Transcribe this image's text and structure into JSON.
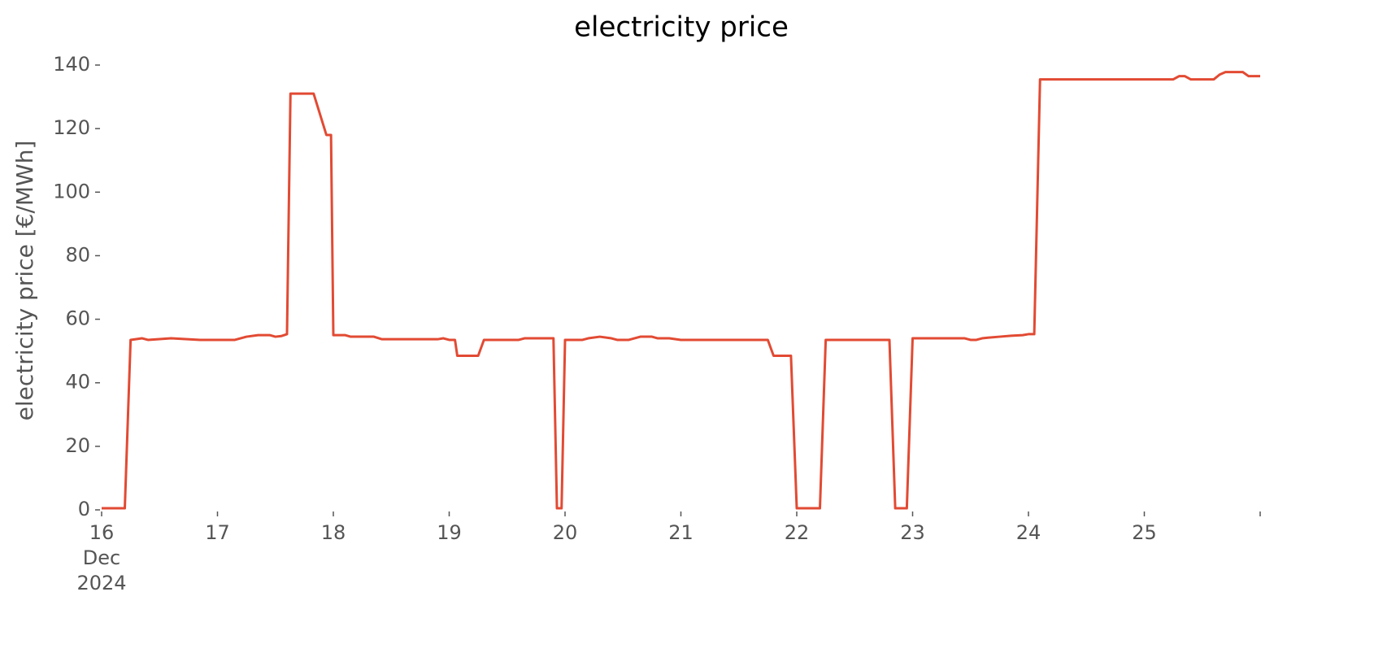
{
  "chart_data": {
    "type": "line",
    "title": "electricity price",
    "ylabel": "electricity price [€/MWh]",
    "x": [
      16.0,
      16.2,
      16.25,
      16.35,
      16.4,
      16.6,
      16.85,
      17.15,
      17.25,
      17.35,
      17.45,
      17.5,
      17.55,
      17.6,
      17.63,
      17.83,
      17.94,
      17.98,
      18.0,
      18.1,
      18.15,
      18.35,
      18.42,
      18.9,
      18.95,
      19.0,
      19.05,
      19.07,
      19.25,
      19.3,
      19.6,
      19.65,
      19.9,
      19.93,
      19.97,
      20.0,
      20.15,
      20.2,
      20.3,
      20.4,
      20.45,
      20.55,
      20.65,
      20.75,
      20.8,
      20.9,
      21.0,
      21.75,
      21.8,
      21.95,
      22.0,
      22.2,
      22.25,
      22.8,
      22.85,
      22.95,
      23.0,
      23.45,
      23.5,
      23.55,
      23.6,
      23.65,
      23.75,
      23.85,
      23.95,
      24.0,
      24.05,
      24.1,
      25.25,
      25.3,
      25.35,
      25.4,
      25.6,
      25.65,
      25.7,
      25.85,
      25.9,
      26.0
    ],
    "series": [
      {
        "name": "electricity price",
        "color": "#E24A33",
        "values": [
          0.5,
          0.5,
          53.5,
          54,
          53.5,
          54,
          53.5,
          53.5,
          54.5,
          55,
          55,
          54.5,
          54.7,
          55.3,
          131,
          131,
          118,
          118,
          55,
          55,
          54.5,
          54.5,
          53.7,
          53.7,
          54,
          53.5,
          53.5,
          48.5,
          48.5,
          53.5,
          53.5,
          54,
          54,
          0.5,
          0.5,
          53.5,
          53.5,
          54,
          54.5,
          54,
          53.5,
          53.5,
          54.5,
          54.5,
          54,
          54,
          53.5,
          53.5,
          48.5,
          48.5,
          0.5,
          0.5,
          53.5,
          53.5,
          0.5,
          0.5,
          54,
          54,
          53.5,
          53.5,
          54,
          54.2,
          54.5,
          54.8,
          55,
          55.3,
          55.3,
          135.5,
          135.5,
          136.5,
          136.5,
          135.5,
          135.5,
          137,
          137.8,
          137.8,
          136.5,
          136.5
        ]
      }
    ],
    "xlim": [
      16,
      26
    ],
    "ylim": [
      0,
      140
    ],
    "xticks": [
      {
        "value": 16,
        "label": "16\nDec\n2024"
      },
      17,
      18,
      19,
      20,
      21,
      22,
      23,
      24,
      25,
      {
        "value": 26,
        "label": null
      }
    ],
    "yticks": [
      0,
      20,
      40,
      60,
      80,
      100,
      120,
      140
    ]
  }
}
